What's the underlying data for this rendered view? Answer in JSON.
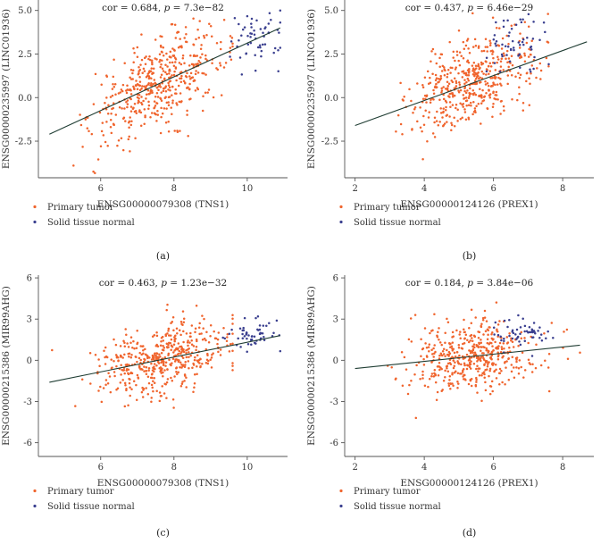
{
  "chart_data": [
    {
      "type": "scatter",
      "panel_label": "(a)",
      "title_prefix": "cor = 0.684, ",
      "title_p_symbol": "p",
      "title_suffix": " = 7.3e−82",
      "xlabel": "ENSG00000079308 (TNS1)",
      "ylabel": "ENSG00000235997 (LINC01936)",
      "xlim": [
        4.3,
        11.1
      ],
      "ylim": [
        -4.6,
        5.6
      ],
      "xticks": [
        6,
        8,
        10
      ],
      "yticks": [
        -2.5,
        0.0,
        2.5,
        5.0
      ],
      "ytick_labels": [
        "-2.5",
        "0.0",
        "2.5",
        "5.0"
      ],
      "fit": {
        "x": [
          4.6,
          10.9
        ],
        "y": [
          -2.1,
          4.0
        ]
      },
      "clouds": {
        "tumor": {
          "n": 480,
          "xc": 7.6,
          "xsd": 0.9,
          "xmin": 4.4,
          "xmax": 9.6,
          "slope": 0.97,
          "x0": 4.6,
          "y0": -2.1,
          "ysd": 1.2
        },
        "normal": {
          "n": 55,
          "xc": 10.2,
          "xsd": 0.4,
          "xmin": 9.3,
          "xmax": 10.9,
          "yc": 3.5,
          "ysd": 0.9
        }
      },
      "legend": [
        "Primary tumor",
        "Solid tissue normal"
      ]
    },
    {
      "type": "scatter",
      "panel_label": "(b)",
      "title_prefix": "cor = 0.437, ",
      "title_p_symbol": "p",
      "title_suffix": " = 6.46e−29",
      "xlabel": "ENSG00000124126 (PREX1)",
      "ylabel": "ENSG00000235997 (LINC01936)",
      "xlim": [
        1.7,
        8.9
      ],
      "ylim": [
        -4.6,
        5.6
      ],
      "xticks": [
        2,
        4,
        6,
        8
      ],
      "yticks": [
        -2.5,
        0.0,
        2.5,
        5.0
      ],
      "ytick_labels": [
        "-2.5",
        "0.0",
        "2.5",
        "5.0"
      ],
      "fit": {
        "x": [
          2.0,
          8.7
        ],
        "y": [
          -1.6,
          3.2
        ]
      },
      "clouds": {
        "tumor": {
          "n": 480,
          "xc": 5.4,
          "xsd": 0.9,
          "xmin": 2.0,
          "xmax": 8.4,
          "slope": 0.716,
          "x0": 2.0,
          "y0": -1.6,
          "ysd": 1.25
        },
        "normal": {
          "n": 55,
          "xc": 6.8,
          "xsd": 0.5,
          "xmin": 5.8,
          "xmax": 7.8,
          "yc": 3.3,
          "ysd": 0.9
        }
      },
      "legend": [
        "Primary tumor",
        "Solid tissue normal"
      ]
    },
    {
      "type": "scatter",
      "panel_label": "(c)",
      "title_prefix": "cor = 0.463, ",
      "title_p_symbol": "p",
      "title_suffix": " = 1.23e−32",
      "xlabel": "ENSG00000079308 (TNS1)",
      "ylabel": "ENSG00000215386 (MIR99AHG)",
      "xlim": [
        4.3,
        11.1
      ],
      "ylim": [
        -7.0,
        6.2
      ],
      "xticks": [
        6,
        8,
        10
      ],
      "yticks": [
        -6,
        -3,
        0,
        3,
        6
      ],
      "ytick_labels": [
        "-6",
        "-3",
        "0",
        "3",
        "6"
      ],
      "fit": {
        "x": [
          4.6,
          10.9
        ],
        "y": [
          -1.6,
          1.8
        ]
      },
      "clouds": {
        "tumor": {
          "n": 480,
          "xc": 7.6,
          "xsd": 0.9,
          "xmin": 4.4,
          "xmax": 9.6,
          "slope": 0.54,
          "x0": 4.6,
          "y0": -1.6,
          "ysd": 1.3
        },
        "normal": {
          "n": 55,
          "xc": 10.2,
          "xsd": 0.4,
          "xmin": 9.3,
          "xmax": 10.9,
          "yc": 1.9,
          "ysd": 0.6
        }
      },
      "legend": [
        "Primary tumor",
        "Solid tissue normal"
      ]
    },
    {
      "type": "scatter",
      "panel_label": "(d)",
      "title_prefix": "cor = 0.184, ",
      "title_p_symbol": "p",
      "title_suffix": " = 3.84e−06",
      "xlabel": "ENSG00000124126 (PREX1)",
      "ylabel": "ENSG00000215386 (MIR99AHG)",
      "xlim": [
        1.7,
        8.9
      ],
      "ylim": [
        -7.0,
        6.2
      ],
      "xticks": [
        2,
        4,
        6,
        8
      ],
      "yticks": [
        -6,
        -3,
        0,
        3,
        6
      ],
      "ytick_labels": [
        "-6",
        "-3",
        "0",
        "3",
        "6"
      ],
      "fit": {
        "x": [
          2.0,
          8.5
        ],
        "y": [
          -0.6,
          1.1
        ]
      },
      "clouds": {
        "tumor": {
          "n": 480,
          "xc": 5.4,
          "xsd": 0.9,
          "xmin": 2.0,
          "xmax": 8.5,
          "slope": 0.26,
          "x0": 2.0,
          "y0": -0.6,
          "ysd": 1.3
        },
        "normal": {
          "n": 55,
          "xc": 6.9,
          "xsd": 0.5,
          "xmin": 5.8,
          "xmax": 7.9,
          "yc": 1.9,
          "ysd": 0.5
        }
      },
      "legend": [
        "Primary tumor",
        "Solid tissue normal"
      ]
    }
  ],
  "colors": {
    "tumor": "#f0642d",
    "normal": "#3a3f8f",
    "fit": "#1f3d33",
    "axis": "#555555"
  }
}
